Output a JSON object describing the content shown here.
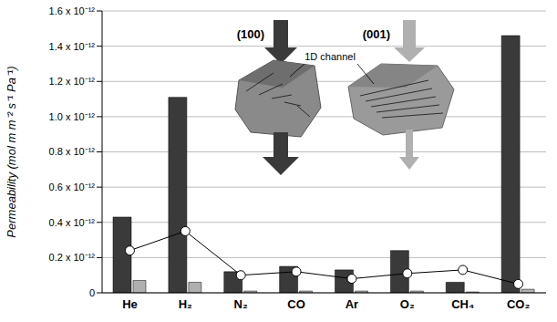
{
  "chart_data": {
    "type": "bar",
    "ylabel": "Permeability (mol m m⁻² s⁻¹ Pa⁻¹)",
    "categories": [
      "He",
      "H₂",
      "N₂",
      "CO",
      "Ar",
      "O₂",
      "CH₄",
      "CO₂"
    ],
    "series": [
      {
        "name": "(100)",
        "type": "bar",
        "color": "#3a3a3a",
        "values": [
          4.3e-13,
          1.11e-12,
          1.2e-13,
          1.5e-13,
          1.3e-13,
          2.4e-13,
          6e-14,
          1.46e-12
        ]
      },
      {
        "name": "(001)",
        "type": "bar",
        "color": "#b0b0b0",
        "values": [
          7e-14,
          6e-14,
          1e-14,
          1e-14,
          1e-14,
          1e-14,
          5e-15,
          2e-14
        ]
      },
      {
        "type": "line",
        "color": "#000000",
        "marker": "circle",
        "values": [
          2.4e-13,
          3.5e-13,
          1e-13,
          1.2e-13,
          8e-14,
          1.1e-13,
          1.3e-13,
          5e-14
        ]
      }
    ],
    "ylim": [
      0,
      1.6e-12
    ],
    "yticks": [
      0,
      {
        "value": 2e-13,
        "label": "0.2 x 10⁻¹²"
      },
      {
        "value": 4e-13,
        "label": "0.4 x 10⁻¹²"
      },
      {
        "value": 6e-13,
        "label": "0.6 x 10⁻¹²"
      },
      {
        "value": 8e-13,
        "label": "0.8 x 10⁻¹²"
      },
      {
        "value": 1e-12,
        "label": "1.0 x 10⁻¹²"
      },
      {
        "value": 1.2e-12,
        "label": "1.2 x 10⁻¹²"
      },
      {
        "value": 1.4e-12,
        "label": "1.4 x 10⁻¹²"
      },
      {
        "value": 1.6e-12,
        "label": "1.6 x 10⁻¹²"
      }
    ],
    "grid": true,
    "annotations": [
      "1D channel"
    ]
  }
}
